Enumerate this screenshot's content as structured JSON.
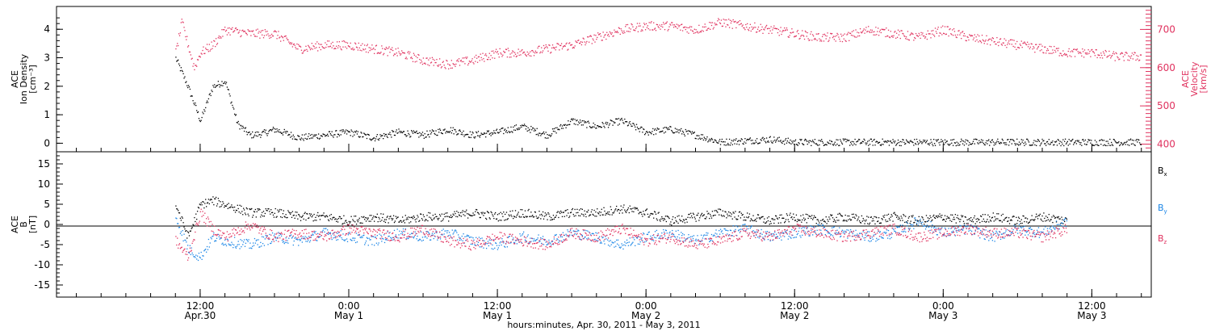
{
  "chart_data": [
    {
      "type": "scatter",
      "panel": "top",
      "ylabel_left": [
        "ACE",
        "Ion Density",
        "[cm⁻³]"
      ],
      "ylabel_right": [
        "ACE",
        "Velocity",
        "[km/s]"
      ],
      "ylim_left": [
        -0.3,
        4.8
      ],
      "ylim_right": [
        380,
        760
      ],
      "yticks_left": [
        0,
        1,
        2,
        3,
        4
      ],
      "yticks_right": [
        400,
        500,
        600,
        700
      ],
      "colors": {
        "density": "#000000",
        "velocity": "#e0325f"
      },
      "series": [
        {
          "axis": "left",
          "hours": [
            0,
            1,
            2,
            3,
            4,
            5,
            6,
            7,
            8,
            10,
            12,
            14,
            16,
            18,
            20,
            22,
            24,
            26,
            28,
            30,
            32,
            34,
            36,
            38,
            40,
            42,
            44,
            46,
            48,
            50,
            52,
            54,
            56,
            58,
            60,
            62,
            64,
            66,
            68,
            70,
            72,
            74,
            76,
            78
          ],
          "values": [
            3.0,
            2.0,
            0.8,
            2.0,
            2.2,
            0.7,
            0.3,
            0.35,
            0.5,
            0.2,
            0.3,
            0.4,
            0.2,
            0.4,
            0.3,
            0.5,
            0.3,
            0.4,
            0.6,
            0.3,
            0.8,
            0.6,
            0.8,
            0.4,
            0.5,
            0.3,
            0.05,
            0.1,
            0.15,
            0.05,
            0.05,
            0.05,
            0.05,
            0.05,
            0.05,
            0.05,
            0.05,
            0.05,
            0.05,
            0.05,
            0.05,
            0.05,
            0.05,
            0.05
          ]
        },
        {
          "axis": "right",
          "hours": [
            0,
            0.5,
            1,
            1.5,
            2,
            3,
            4,
            6,
            8,
            10,
            12,
            14,
            16,
            18,
            20,
            22,
            24,
            26,
            28,
            30,
            32,
            34,
            36,
            38,
            40,
            42,
            44,
            46,
            48,
            50,
            52,
            54,
            56,
            58,
            60,
            62,
            64,
            66,
            68,
            70,
            72,
            74,
            76,
            78
          ],
          "values": [
            640,
            720,
            660,
            600,
            640,
            660,
            700,
            690,
            690,
            650,
            660,
            660,
            650,
            640,
            620,
            610,
            620,
            640,
            640,
            650,
            660,
            680,
            700,
            710,
            710,
            700,
            720,
            710,
            700,
            690,
            680,
            680,
            700,
            690,
            680,
            700,
            680,
            670,
            660,
            650,
            640,
            640,
            630,
            630
          ]
        }
      ]
    },
    {
      "type": "scatter",
      "panel": "bottom",
      "ylabel": [
        "ACE",
        "B",
        "[nT]"
      ],
      "ylim": [
        -18,
        18
      ],
      "yticks": [
        -15,
        -10,
        -5,
        0,
        5,
        10,
        15
      ],
      "legend": [
        "B_x",
        "B_y",
        "B_z"
      ],
      "legend_placement": "right",
      "x_axis_title": "hours:minutes, Apr. 30, 2011 - May  3, 2011",
      "x_ticks": [
        {
          "hours": 2,
          "time": "12:00",
          "date": "Apr.30"
        },
        {
          "hours": 14,
          "time": "0:00",
          "date": "May 1"
        },
        {
          "hours": 26,
          "time": "12:00",
          "date": "May 1"
        },
        {
          "hours": 38,
          "time": "0:00",
          "date": "May 2"
        },
        {
          "hours": 50,
          "time": "12:00",
          "date": "May 2"
        },
        {
          "hours": 62,
          "time": "0:00",
          "date": "May 3"
        },
        {
          "hours": 74,
          "time": "12:00",
          "date": "May 3"
        }
      ],
      "colors": {
        "Bx": "#000000",
        "By": "#1a85e6",
        "Bz": "#e0325f"
      },
      "series": [
        {
          "name": "B_x",
          "hours": [
            0,
            1,
            2,
            3,
            4,
            6,
            8,
            10,
            12,
            14,
            16,
            18,
            20,
            22,
            24,
            26,
            28,
            30,
            32,
            34,
            36,
            38,
            40,
            42,
            44,
            46,
            48,
            50,
            52,
            54,
            56,
            58,
            60,
            62,
            64,
            66,
            68,
            70,
            72
          ],
          "values": [
            5,
            -3,
            5,
            6,
            5,
            3,
            3,
            2,
            2,
            1,
            2,
            1,
            2,
            2,
            3,
            2,
            3,
            2,
            3,
            3,
            4,
            3,
            1,
            2,
            3,
            2,
            1,
            2,
            1,
            2,
            1,
            2,
            1,
            2,
            1,
            2,
            1,
            2,
            1
          ]
        },
        {
          "name": "B_y",
          "hours": [
            0,
            1,
            2,
            3,
            4,
            6,
            8,
            10,
            12,
            14,
            16,
            18,
            20,
            22,
            24,
            26,
            28,
            30,
            32,
            34,
            36,
            38,
            40,
            42,
            44,
            46,
            48,
            50,
            52,
            54,
            56,
            58,
            60,
            62,
            64,
            66,
            68,
            70,
            72
          ],
          "values": [
            2,
            -6,
            -8,
            -3,
            -4,
            -5,
            -3,
            -4,
            -2,
            -3,
            -4,
            -2,
            -3,
            -2,
            -4,
            -5,
            -3,
            -4,
            -2,
            -3,
            -5,
            -3,
            -2,
            -4,
            -2,
            -1,
            -3,
            -2,
            -1,
            -2,
            -3,
            -2,
            1,
            -2,
            -1,
            -3,
            -1,
            -2,
            1
          ]
        },
        {
          "name": "B_z",
          "hours": [
            0,
            1,
            2,
            3,
            4,
            6,
            8,
            10,
            12,
            14,
            16,
            18,
            20,
            22,
            24,
            26,
            28,
            30,
            32,
            34,
            36,
            38,
            40,
            42,
            44,
            46,
            48,
            50,
            52,
            54,
            56,
            58,
            60,
            62,
            64,
            66,
            68,
            70,
            72
          ],
          "values": [
            -4,
            -8,
            3,
            -1,
            -3,
            0,
            -3,
            -2,
            -3,
            -1,
            -2,
            -3,
            -1,
            -4,
            -5,
            -3,
            -4,
            -5,
            -2,
            -3,
            -1,
            -4,
            -3,
            -5,
            -4,
            -2,
            -3,
            -1,
            -2,
            -3,
            -2,
            -1,
            -3,
            -2,
            -1,
            -2,
            -2,
            -3,
            -1
          ]
        }
      ]
    }
  ],
  "text": {
    "x_axis_title": "hours:minutes, Apr. 30, 2011 - May  3, 2011",
    "legend_bx_main": "B",
    "legend_bx_sub": "x",
    "legend_by_main": "B",
    "legend_by_sub": "y",
    "legend_bz_main": "B",
    "legend_bz_sub": "z"
  }
}
